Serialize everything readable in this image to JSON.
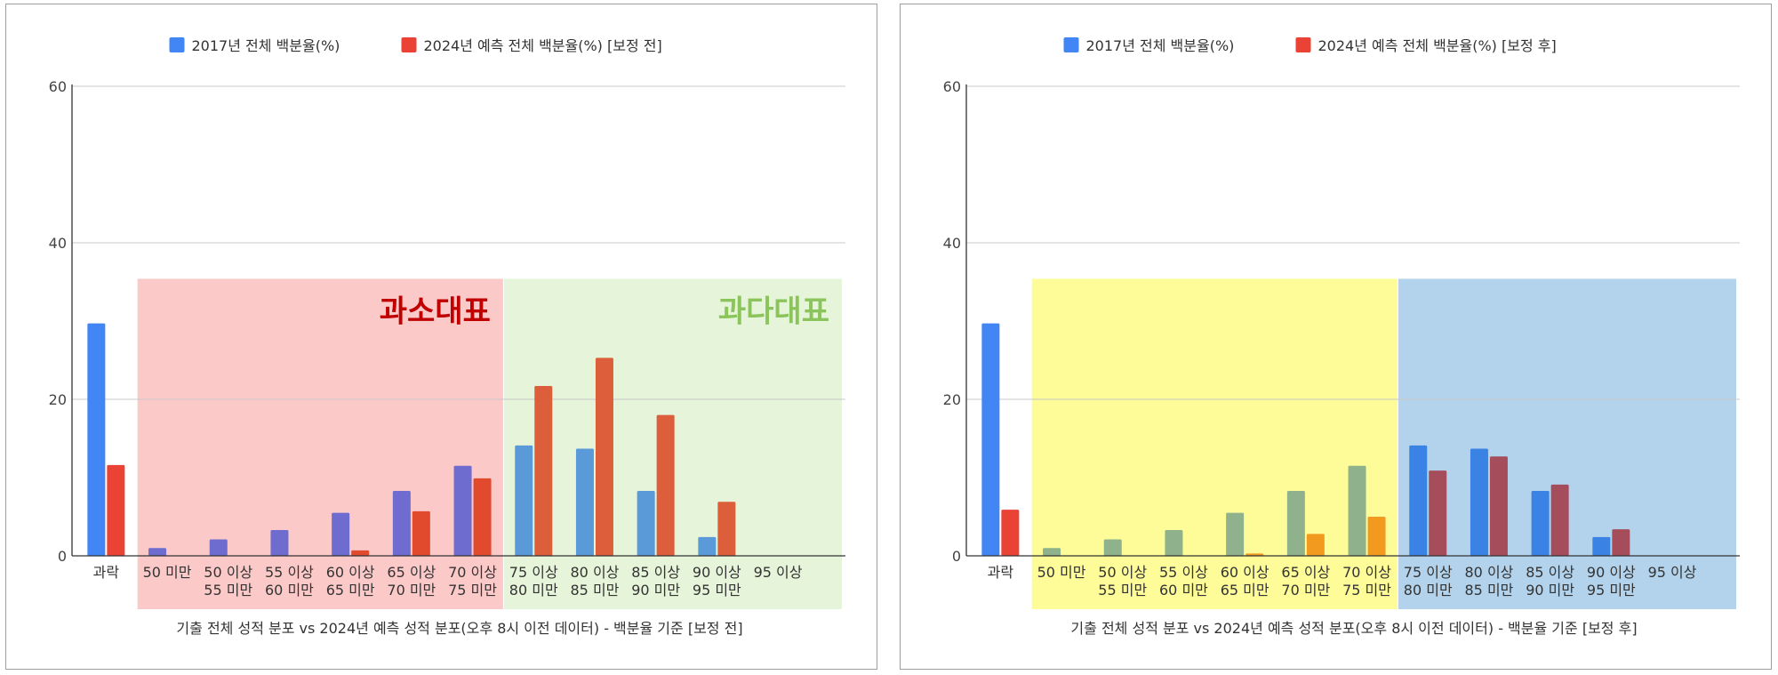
{
  "chart_data": [
    {
      "type": "bar",
      "title": "기출 전체 성적 분포 vs 2024년 예측 성적 분포(오후 8시 이전 데이터) - 백분율 기준 [보정 전]",
      "categories": [
        [
          "과락"
        ],
        [
          "50 미만"
        ],
        [
          "50 이상",
          "55 미만"
        ],
        [
          "55 이상",
          "60 미만"
        ],
        [
          "60 이상",
          "65 미만"
        ],
        [
          "65 이상",
          "70 미만"
        ],
        [
          "70 이상",
          "75 미만"
        ],
        [
          "75 이상",
          "80 미만"
        ],
        [
          "80 이상",
          "85 미만"
        ],
        [
          "85 이상",
          "90 미만"
        ],
        [
          "90 이상",
          "95 미만"
        ],
        [
          "95 이상"
        ]
      ],
      "series": [
        {
          "name": "2017년 전체 백분율(%)",
          "color": "#4285f4",
          "values": [
            29.7,
            1.0,
            2.1,
            3.3,
            5.5,
            8.3,
            11.5,
            14.1,
            13.7,
            8.3,
            2.4,
            0
          ]
        },
        {
          "name": "2024년 예측 전체 백분율(%) [보정 전]",
          "color": "#ea4335",
          "values": [
            11.6,
            0,
            0,
            0,
            0.7,
            5.7,
            9.9,
            21.7,
            25.3,
            18.0,
            6.9,
            0
          ]
        }
      ],
      "ylim": [
        0,
        60
      ],
      "yticks": [
        "0",
        "20",
        "40",
        "60"
      ],
      "grid": true,
      "legend": "top",
      "regions": [
        {
          "label": "과소대표",
          "from": 1,
          "to": 6,
          "fill": "#fcc9c9",
          "label_color": "#c00000",
          "s1": "#6e6ccf",
          "s2": "#e24a2e"
        },
        {
          "label": "과다대표",
          "from": 7,
          "to": 11,
          "fill": "#e6f4da",
          "label_color": "#8ac45a",
          "s1": "#5a9ad8",
          "s2": "#dc5e3a"
        }
      ]
    },
    {
      "type": "bar",
      "title": "기출 전체 성적 분포 vs 2024년 예측 성적 분포(오후 8시 이전 데이터) - 백분율 기준 [보정 후]",
      "categories": [
        [
          "과락"
        ],
        [
          "50 미만"
        ],
        [
          "50 이상",
          "55 미만"
        ],
        [
          "55 이상",
          "60 미만"
        ],
        [
          "60 이상",
          "65 미만"
        ],
        [
          "65 이상",
          "70 미만"
        ],
        [
          "70 이상",
          "75 미만"
        ],
        [
          "75 이상",
          "80 미만"
        ],
        [
          "80 이상",
          "85 미만"
        ],
        [
          "85 이상",
          "90 미만"
        ],
        [
          "90 이상",
          "95 미만"
        ],
        [
          "95 이상"
        ]
      ],
      "series": [
        {
          "name": "2017년 전체 백분율(%)",
          "color": "#4285f4",
          "values": [
            29.7,
            1.0,
            2.1,
            3.3,
            5.5,
            8.3,
            11.5,
            14.1,
            13.7,
            8.3,
            2.4,
            0
          ]
        },
        {
          "name": "2024년 예측 전체 백분율(%) [보정 후]",
          "color": "#ea4335",
          "values": [
            5.9,
            0,
            0,
            0,
            0.3,
            2.8,
            5.0,
            10.9,
            12.7,
            9.1,
            3.4,
            0
          ]
        }
      ],
      "ylim": [
        0,
        60
      ],
      "yticks": [
        "0",
        "20",
        "40",
        "60"
      ],
      "grid": true,
      "legend": "top",
      "regions": [
        {
          "label": "",
          "from": 1,
          "to": 6,
          "fill": "#fdfc98",
          "label_color": "#000000",
          "s1": "#8fb18b",
          "s2": "#f29a1f"
        },
        {
          "label": "",
          "from": 7,
          "to": 11,
          "fill": "#b3d3ec",
          "label_color": "#000000",
          "s1": "#3a82e4",
          "s2": "#a64d5c"
        }
      ]
    }
  ]
}
